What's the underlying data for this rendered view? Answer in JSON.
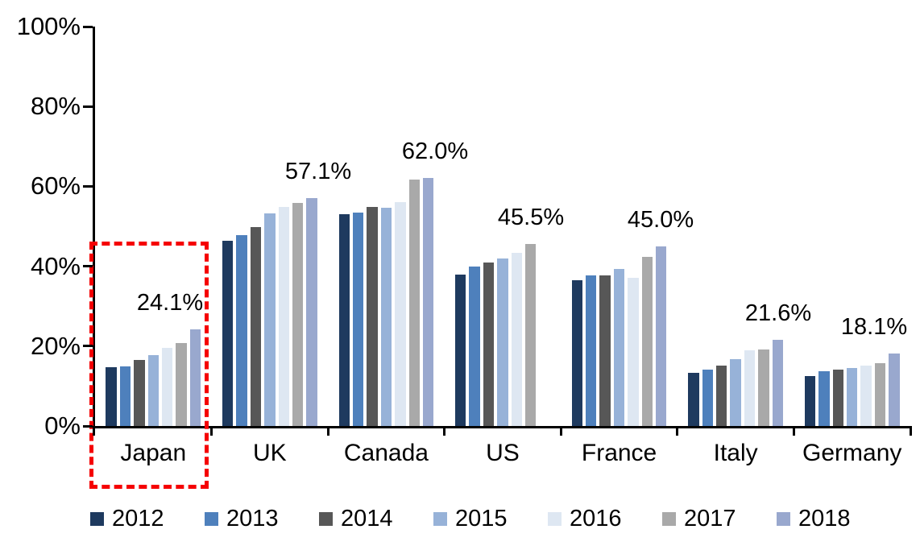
{
  "chart_data": {
    "type": "bar",
    "title": "",
    "xlabel": "",
    "ylabel": "",
    "ylim": [
      0,
      100
    ],
    "grid": false,
    "yticks": [
      {
        "value": 0,
        "label": "0%"
      },
      {
        "value": 20,
        "label": "20%"
      },
      {
        "value": 40,
        "label": "40%"
      },
      {
        "value": 60,
        "label": "60%"
      },
      {
        "value": 80,
        "label": "80%"
      },
      {
        "value": 100,
        "label": "100%"
      }
    ],
    "categories": [
      "Japan",
      "UK",
      "Canada",
      "US",
      "France",
      "Italy",
      "Germany"
    ],
    "series": [
      {
        "name": "2012",
        "color": "#1E3A5F",
        "values": [
          14.8,
          46.3,
          53.0,
          38.0,
          36.5,
          13.3,
          12.5
        ]
      },
      {
        "name": "2013",
        "color": "#4E80BC",
        "values": [
          15.0,
          47.8,
          53.4,
          39.9,
          37.8,
          14.1,
          13.8
        ]
      },
      {
        "name": "2014",
        "color": "#575757",
        "values": [
          16.5,
          49.9,
          54.9,
          40.9,
          37.7,
          15.2,
          14.2
        ]
      },
      {
        "name": "2015",
        "color": "#97B2D8",
        "values": [
          17.8,
          53.3,
          54.6,
          41.9,
          39.3,
          16.7,
          14.6
        ]
      },
      {
        "name": "2016",
        "color": "#DEE7F2",
        "values": [
          19.6,
          54.9,
          56.0,
          43.4,
          37.2,
          18.9,
          15.2
        ]
      },
      {
        "name": "2017",
        "color": "#A9A9A9",
        "values": [
          20.8,
          55.8,
          61.6,
          45.5,
          42.3,
          19.1,
          15.8
        ]
      },
      {
        "name": "2018",
        "color": "#99A8CE",
        "values": [
          24.1,
          57.1,
          62.0,
          null,
          45.0,
          21.6,
          18.1
        ]
      }
    ],
    "data_labels": [
      {
        "category": "Japan",
        "text": "24.1%",
        "value": 24.1
      },
      {
        "category": "UK",
        "text": "57.1%",
        "value": 57.1
      },
      {
        "category": "Canada",
        "text": "62.0%",
        "value": 62.0
      },
      {
        "category": "US",
        "text": "45.5%",
        "value": 45.5
      },
      {
        "category": "France",
        "text": "45.0%",
        "value": 45.0
      },
      {
        "category": "Italy",
        "text": "21.6%",
        "value": 21.6
      },
      {
        "category": "Germany",
        "text": "18.1%",
        "value": 18.1
      }
    ],
    "legend": {
      "position": "bottom",
      "entries": [
        "2012",
        "2013",
        "2014",
        "2015",
        "2016",
        "2017",
        "2018"
      ]
    },
    "highlight": {
      "target": "Japan",
      "style": "dashed-box",
      "color": "#F50002"
    }
  }
}
